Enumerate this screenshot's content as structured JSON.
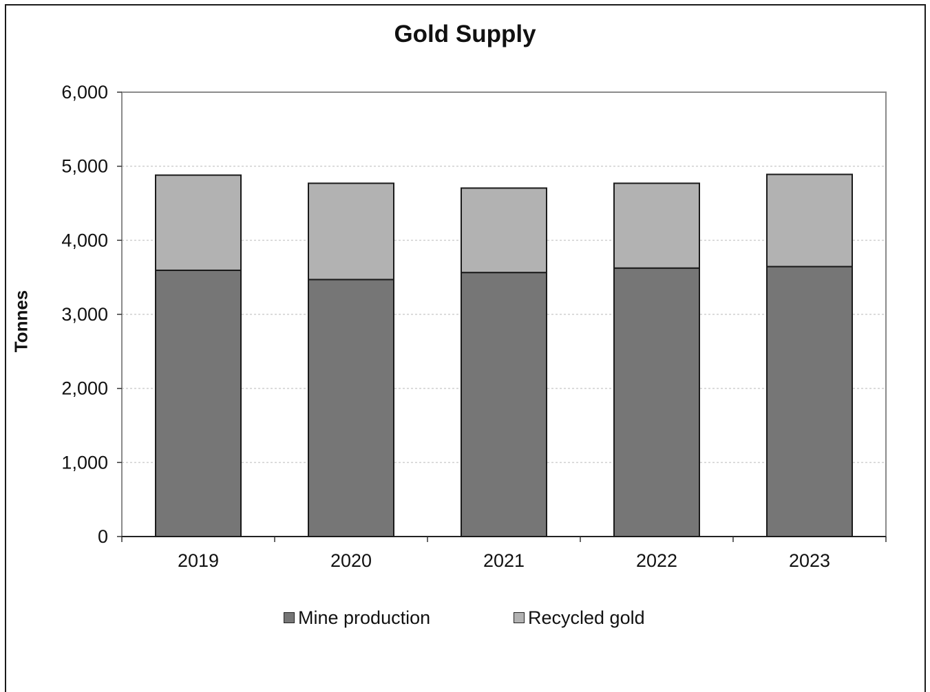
{
  "chart_data": {
    "type": "bar",
    "stacked": true,
    "title": "Gold Supply",
    "xlabel": "",
    "ylabel": "Tonnes",
    "categories": [
      "2019",
      "2020",
      "2021",
      "2022",
      "2023"
    ],
    "series": [
      {
        "name": "Mine production",
        "values": [
          3595,
          3470,
          3565,
          3625,
          3645
        ],
        "color": "#767676"
      },
      {
        "name": "Recycled gold",
        "values": [
          1285,
          1300,
          1140,
          1145,
          1245
        ],
        "color": "#b2b2b2"
      }
    ],
    "ylim": [
      0,
      6000
    ],
    "yticks": [
      0,
      1000,
      2000,
      3000,
      4000,
      5000,
      6000
    ],
    "ytick_labels": [
      "0",
      "1,000",
      "2,000",
      "3,000",
      "4,000",
      "5,000",
      "6,000"
    ],
    "grid": true,
    "legend_position": "bottom"
  }
}
